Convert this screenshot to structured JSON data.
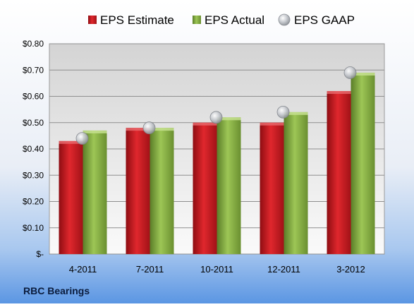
{
  "chart_data": {
    "type": "bar",
    "title": "",
    "xlabel": "",
    "ylabel": "",
    "categories": [
      "4-2011",
      "7-2011",
      "10-2011",
      "12-2011",
      "3-2012"
    ],
    "series": [
      {
        "name": "EPS Estimate",
        "kind": "bar",
        "color": "#c0171d",
        "values": [
          0.43,
          0.48,
          0.5,
          0.5,
          0.62
        ]
      },
      {
        "name": "EPS Actual",
        "kind": "bar",
        "color": "#7fa83b",
        "values": [
          0.47,
          0.48,
          0.52,
          0.54,
          0.69
        ]
      },
      {
        "name": "EPS GAAP",
        "kind": "marker",
        "color": "#b8bcc2",
        "values": [
          0.44,
          0.48,
          0.52,
          0.54,
          0.69
        ]
      }
    ],
    "ylim": [
      0,
      0.8
    ],
    "yticks": [
      {
        "value": 0.8,
        "label": "$0.80"
      },
      {
        "value": 0.7,
        "label": "$0.70"
      },
      {
        "value": 0.6,
        "label": "$0.60"
      },
      {
        "value": 0.5,
        "label": "$0.50"
      },
      {
        "value": 0.4,
        "label": "$0.40"
      },
      {
        "value": 0.3,
        "label": "$0.30"
      },
      {
        "value": 0.2,
        "label": "$0.20"
      },
      {
        "value": 0.1,
        "label": "$0.10"
      },
      {
        "value": 0,
        "label": "$-"
      }
    ],
    "grid": true,
    "legend_position": "top"
  },
  "footer": {
    "company": "RBC Bearings"
  }
}
